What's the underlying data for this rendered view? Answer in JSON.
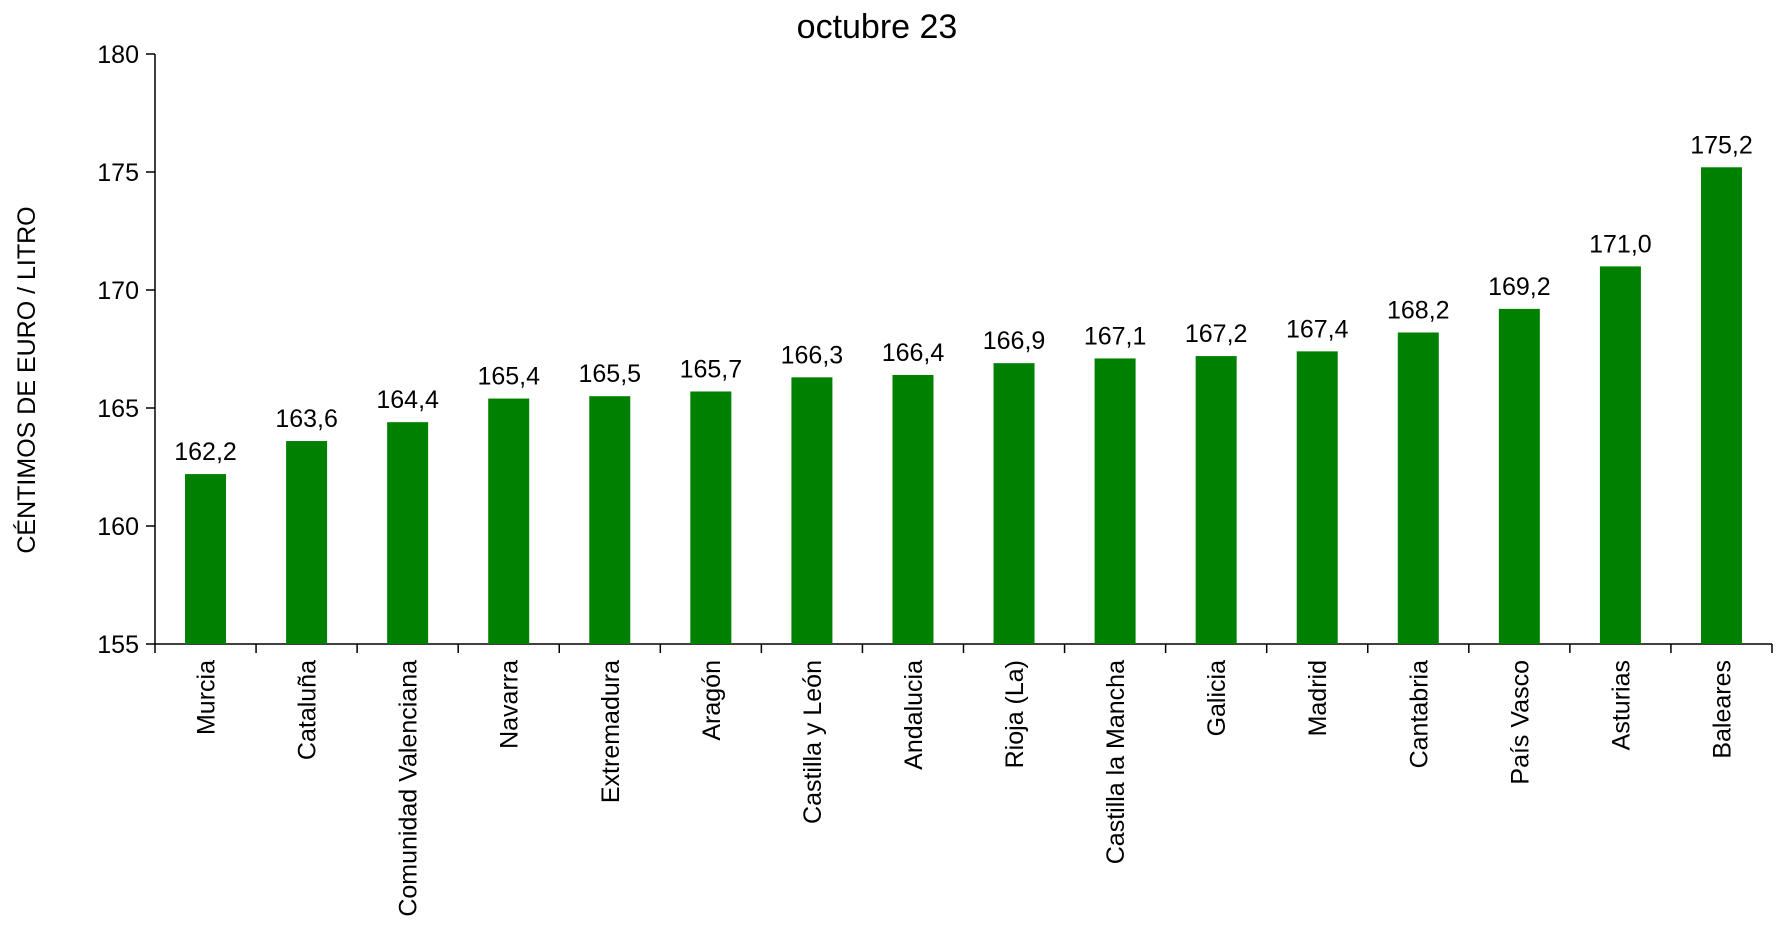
{
  "chart_data": {
    "type": "bar",
    "title": "octubre 23",
    "xlabel": "",
    "ylabel": "CÉNTIMOS DE EURO / LITRO",
    "ylim": [
      155,
      180
    ],
    "yticks": [
      155,
      160,
      165,
      170,
      175,
      180
    ],
    "categories": [
      "Murcia",
      "Cataluña",
      "Comunidad Valenciana",
      "Navarra",
      "Extremadura",
      "Aragón",
      "Castilla y León",
      "Andalucia",
      "Rioja (La)",
      "Castilla la Mancha",
      "Galicia",
      "Madrid",
      "Cantabria",
      "País Vasco",
      "Asturias",
      "Baleares"
    ],
    "values": [
      162.2,
      163.6,
      164.4,
      165.4,
      165.5,
      165.7,
      166.3,
      166.4,
      166.9,
      167.1,
      167.2,
      167.4,
      168.2,
      169.2,
      171.0,
      175.2
    ],
    "value_labels": [
      "162,2",
      "163,6",
      "164,4",
      "165,4",
      "165,5",
      "165,7",
      "166,3",
      "166,4",
      "166,9",
      "167,1",
      "167,2",
      "167,4",
      "168,2",
      "169,2",
      "171,0",
      "175,2"
    ],
    "bar_color": "#008000",
    "grid": false,
    "legend": "none"
  }
}
